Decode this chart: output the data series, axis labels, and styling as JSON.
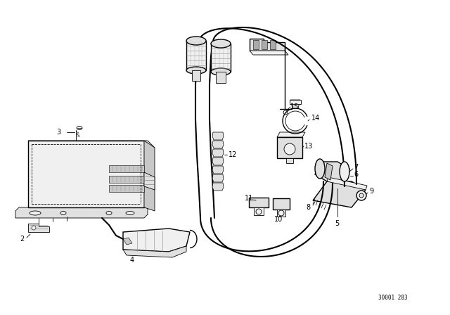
{
  "background_color": "#ffffff",
  "line_color": "#000000",
  "watermark": "30001 283",
  "fig_width": 6.4,
  "fig_height": 4.48,
  "dpi": 100,
  "lw_main": 1.0,
  "lw_thin": 0.6,
  "lw_cable": 1.5,
  "label_fs": 7
}
